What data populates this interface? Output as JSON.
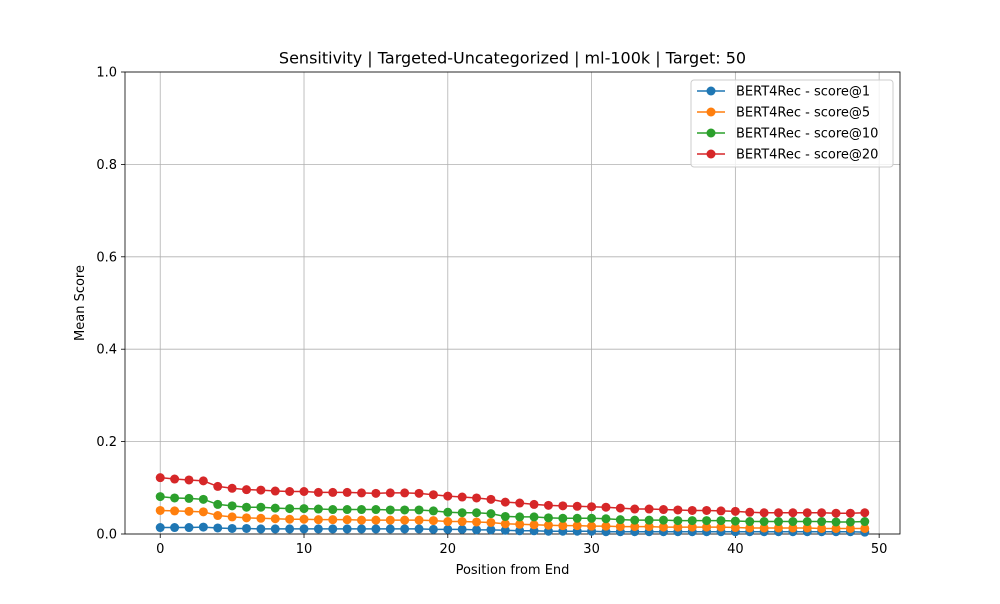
{
  "chart_data": {
    "type": "line",
    "title": "Sensitivity | Targeted-Uncategorized | ml-100k | Target: 50",
    "xlabel": "Position from End",
    "ylabel": "Mean Score",
    "xlim": [
      -2.45,
      51.45
    ],
    "ylim": [
      0,
      1.0
    ],
    "xticks": [
      0,
      10,
      20,
      30,
      40,
      50
    ],
    "xtick_labels": [
      "0",
      "10",
      "20",
      "30",
      "40",
      "50"
    ],
    "yticks": [
      0.0,
      0.2,
      0.4,
      0.6,
      0.8,
      1.0
    ],
    "ytick_labels": [
      "0.0",
      "0.2",
      "0.4",
      "0.6",
      "0.8",
      "1.0"
    ],
    "grid": true,
    "legend_position": "top-right",
    "x": [
      0,
      1,
      2,
      3,
      4,
      5,
      6,
      7,
      8,
      9,
      10,
      11,
      12,
      13,
      14,
      15,
      16,
      17,
      18,
      19,
      20,
      21,
      22,
      23,
      24,
      25,
      26,
      27,
      28,
      29,
      30,
      31,
      32,
      33,
      34,
      35,
      36,
      37,
      38,
      39,
      40,
      41,
      42,
      43,
      44,
      45,
      46,
      47,
      48,
      49
    ],
    "series": [
      {
        "name": "BERT4Rec - score@1",
        "color": "#1f77b4",
        "values": [
          0.014,
          0.014,
          0.014,
          0.015,
          0.013,
          0.012,
          0.012,
          0.011,
          0.011,
          0.011,
          0.011,
          0.011,
          0.011,
          0.011,
          0.011,
          0.011,
          0.011,
          0.011,
          0.011,
          0.01,
          0.01,
          0.01,
          0.009,
          0.009,
          0.008,
          0.007,
          0.007,
          0.006,
          0.006,
          0.006,
          0.006,
          0.005,
          0.005,
          0.005,
          0.005,
          0.005,
          0.005,
          0.005,
          0.005,
          0.005,
          0.005,
          0.005,
          0.005,
          0.005,
          0.005,
          0.005,
          0.005,
          0.005,
          0.005,
          0.004
        ]
      },
      {
        "name": "BERT4Rec - score@5",
        "color": "#ff7f0e",
        "values": [
          0.051,
          0.05,
          0.049,
          0.048,
          0.04,
          0.037,
          0.035,
          0.034,
          0.033,
          0.032,
          0.032,
          0.031,
          0.031,
          0.031,
          0.03,
          0.03,
          0.03,
          0.03,
          0.03,
          0.029,
          0.027,
          0.027,
          0.026,
          0.025,
          0.022,
          0.021,
          0.02,
          0.019,
          0.018,
          0.018,
          0.017,
          0.017,
          0.016,
          0.016,
          0.016,
          0.015,
          0.015,
          0.015,
          0.015,
          0.015,
          0.014,
          0.013,
          0.013,
          0.013,
          0.013,
          0.013,
          0.012,
          0.012,
          0.012,
          0.012
        ]
      },
      {
        "name": "BERT4Rec - score@10",
        "color": "#2ca02c",
        "values": [
          0.081,
          0.078,
          0.077,
          0.075,
          0.064,
          0.061,
          0.058,
          0.058,
          0.056,
          0.055,
          0.055,
          0.054,
          0.053,
          0.053,
          0.053,
          0.053,
          0.052,
          0.052,
          0.052,
          0.05,
          0.047,
          0.046,
          0.046,
          0.044,
          0.038,
          0.037,
          0.037,
          0.035,
          0.034,
          0.034,
          0.034,
          0.033,
          0.031,
          0.03,
          0.03,
          0.03,
          0.029,
          0.029,
          0.029,
          0.029,
          0.028,
          0.027,
          0.027,
          0.027,
          0.027,
          0.027,
          0.027,
          0.026,
          0.026,
          0.027
        ]
      },
      {
        "name": "BERT4Rec - score@20",
        "color": "#d62728",
        "values": [
          0.122,
          0.119,
          0.117,
          0.115,
          0.103,
          0.099,
          0.096,
          0.095,
          0.093,
          0.092,
          0.092,
          0.09,
          0.09,
          0.09,
          0.089,
          0.088,
          0.089,
          0.089,
          0.088,
          0.085,
          0.082,
          0.08,
          0.078,
          0.075,
          0.069,
          0.067,
          0.064,
          0.062,
          0.061,
          0.06,
          0.059,
          0.058,
          0.056,
          0.054,
          0.054,
          0.053,
          0.052,
          0.051,
          0.051,
          0.05,
          0.049,
          0.047,
          0.046,
          0.046,
          0.046,
          0.046,
          0.046,
          0.045,
          0.045,
          0.046
        ]
      }
    ]
  }
}
